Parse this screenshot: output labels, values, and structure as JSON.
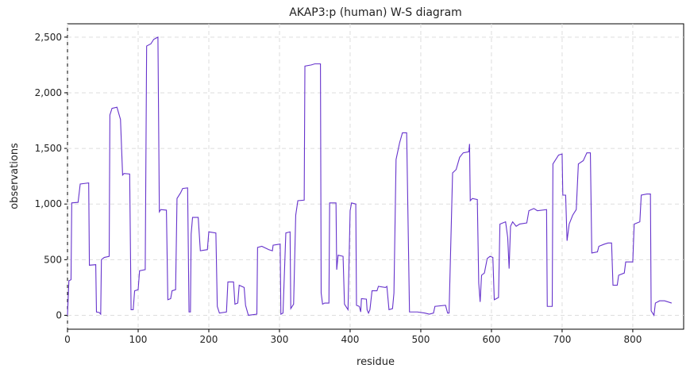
{
  "chart_data": {
    "type": "line",
    "title": "AKAP3:p (human) W-S diagram",
    "x_label": "residue",
    "y_label": "observations",
    "xlim": [
      0,
      872
    ],
    "ylim": [
      -125,
      2620
    ],
    "xticks": [
      0,
      100,
      200,
      300,
      400,
      500,
      600,
      700,
      800
    ],
    "yticks": [
      0,
      500,
      {
        "value": 1000,
        "label": "1,000"
      },
      {
        "value": 1500,
        "label": "1,500"
      },
      {
        "value": 2000,
        "label": "2,000"
      },
      {
        "value": 2500,
        "label": "2,500"
      }
    ],
    "grid": true,
    "series": [
      {
        "color": "#6633cc",
        "x": [
          0,
          2,
          5,
          6,
          15,
          18,
          30,
          31,
          40,
          41,
          45,
          47,
          48,
          52,
          59,
          60,
          63,
          70,
          75,
          78,
          80,
          88,
          90,
          93,
          95,
          100,
          102,
          110,
          112,
          118,
          122,
          128,
          130,
          132,
          140,
          142,
          146,
          148,
          153,
          155,
          160,
          163,
          170,
          172,
          174,
          175,
          177,
          185,
          188,
          198,
          200,
          210,
          212,
          215,
          225,
          227,
          235,
          237,
          241,
          243,
          250,
          252,
          256,
          268,
          269,
          275,
          285,
          290,
          291,
          301,
          302,
          305,
          309,
          315,
          316,
          320,
          323,
          326,
          335,
          336,
          345,
          350,
          358,
          359,
          361,
          364,
          370,
          371,
          380,
          381,
          383,
          390,
          392,
          397,
          400,
          402,
          408,
          409,
          413,
          415,
          416,
          423,
          424,
          426,
          428,
          431,
          438,
          440,
          450,
          452,
          455,
          460,
          462,
          465,
          470,
          474,
          480,
          484,
          486,
          495,
          506,
          512,
          518,
          520,
          535,
          538,
          540,
          545,
          550,
          555,
          560,
          568,
          569,
          570,
          573,
          580,
          582,
          584,
          586,
          590,
          594,
          598,
          602,
          604,
          610,
          612,
          620,
          623,
          625,
          627,
          630,
          635,
          640,
          650,
          653,
          660,
          665,
          678,
          679,
          686,
          687,
          695,
          700,
          701,
          705,
          707,
          710,
          715,
          720,
          723,
          730,
          735,
          740,
          742,
          750,
          752,
          760,
          765,
          770,
          772,
          778,
          780,
          788,
          790,
          800,
          802,
          810,
          812,
          820,
          825,
          826,
          830,
          832,
          838,
          845,
          855
        ],
        "values": [
          0,
          310,
          320,
          1010,
          1015,
          1180,
          1190,
          450,
          455,
          30,
          25,
          10,
          500,
          520,
          530,
          1800,
          1860,
          1870,
          1760,
          1260,
          1275,
          1270,
          50,
          50,
          220,
          230,
          400,
          410,
          2420,
          2440,
          2480,
          2500,
          930,
          950,
          945,
          140,
          150,
          220,
          230,
          1050,
          1100,
          1140,
          1145,
          30,
          30,
          730,
          880,
          880,
          580,
          590,
          750,
          740,
          80,
          20,
          30,
          300,
          300,
          100,
          110,
          270,
          250,
          90,
          0,
          10,
          610,
          620,
          590,
          580,
          630,
          640,
          10,
          20,
          740,
          750,
          60,
          100,
          900,
          1030,
          1035,
          2240,
          2250,
          2260,
          2260,
          200,
          100,
          110,
          110,
          1010,
          1010,
          410,
          540,
          530,
          100,
          50,
          940,
          1010,
          1000,
          90,
          80,
          30,
          150,
          145,
          50,
          20,
          50,
          220,
          220,
          260,
          250,
          260,
          50,
          60,
          200,
          1400,
          1550,
          1640,
          1640,
          30,
          30,
          30,
          20,
          10,
          20,
          80,
          90,
          20,
          20,
          1280,
          1310,
          1420,
          1460,
          1470,
          1540,
          1030,
          1050,
          1040,
          290,
          120,
          360,
          380,
          510,
          530,
          520,
          140,
          160,
          820,
          840,
          700,
          420,
          800,
          840,
          800,
          820,
          830,
          940,
          960,
          940,
          950,
          80,
          80,
          1360,
          1440,
          1450,
          1080,
          1080,
          670,
          820,
          900,
          950,
          1360,
          1390,
          1460,
          1460,
          560,
          570,
          620,
          640,
          650,
          650,
          270,
          270,
          360,
          380,
          480,
          480,
          820,
          840,
          1080,
          1090,
          1090,
          40,
          0,
          110,
          130,
          130,
          110
        ]
      }
    ]
  }
}
